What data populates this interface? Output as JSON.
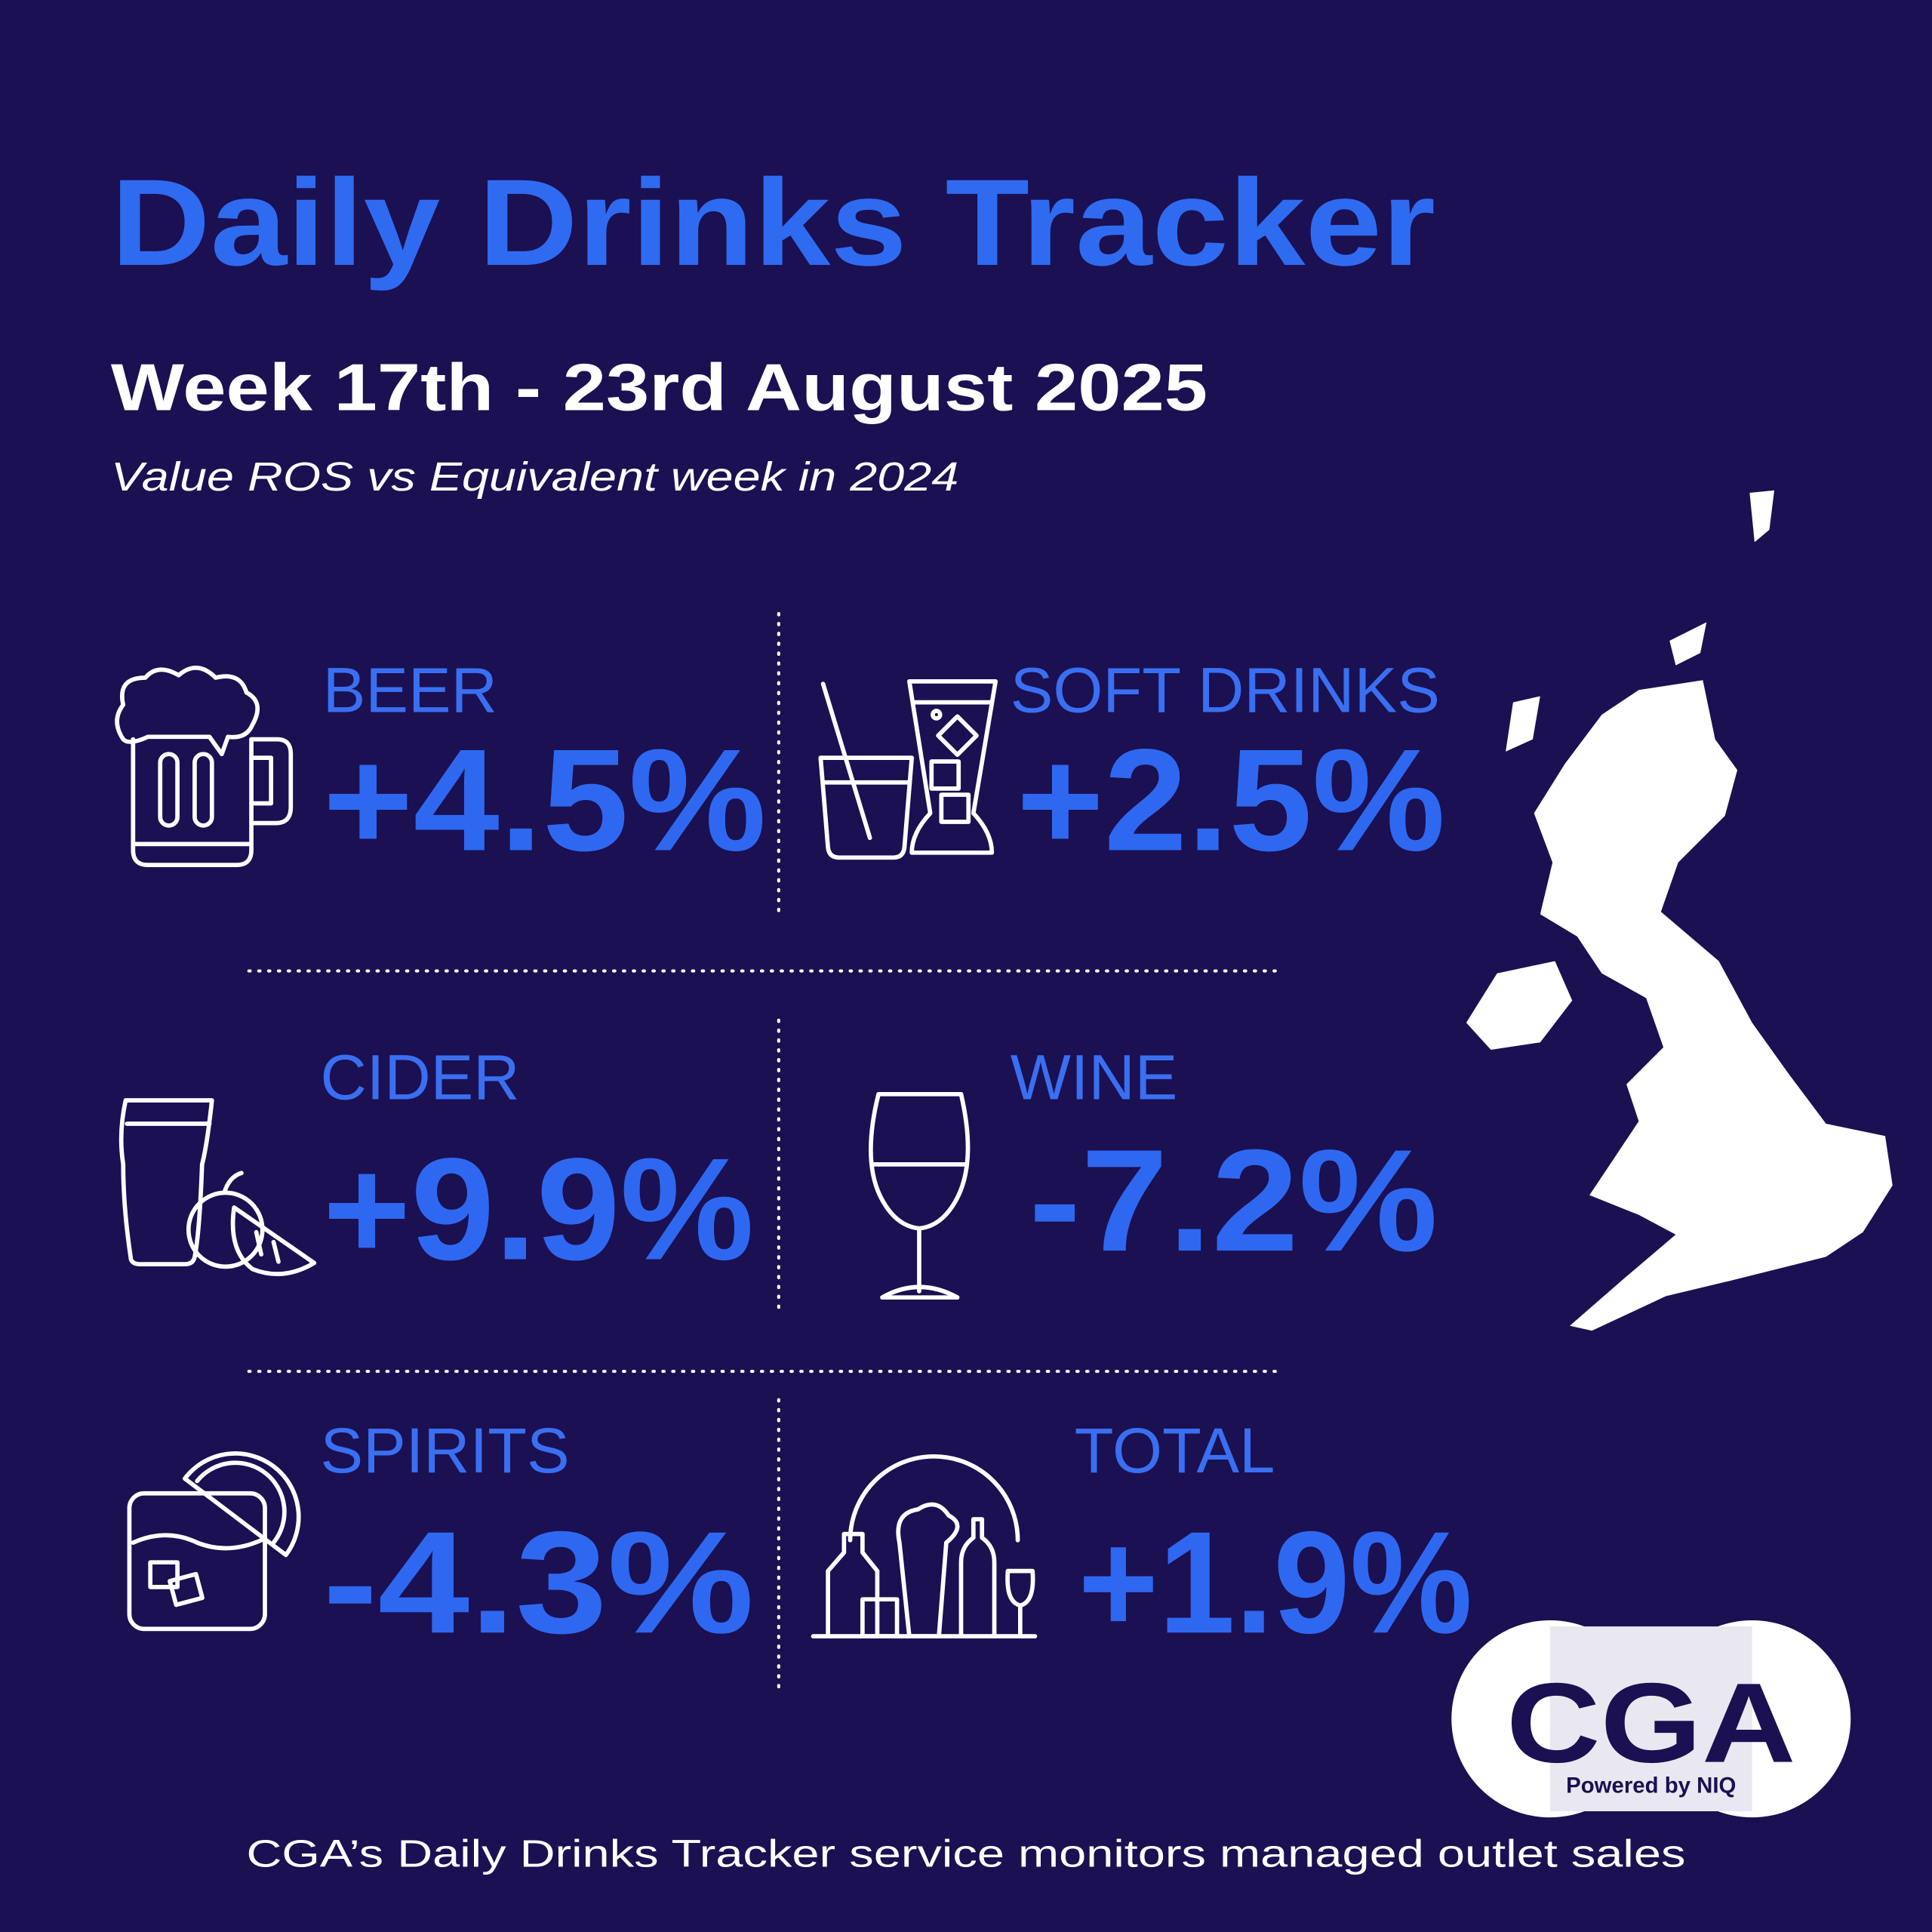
{
  "header": {
    "title": "Daily Drinks Tracker",
    "subtitle": "Week 17th - 23rd August 2025",
    "note": "Value ROS vs Equivalent week in 2024"
  },
  "tiles": [
    {
      "label": "BEER",
      "value": "+4.5%"
    },
    {
      "label": "SOFT DRINKS",
      "value": "+2.5%"
    },
    {
      "label": "CIDER",
      "value": "+9.9%"
    },
    {
      "label": "WINE",
      "value": "-7.2%"
    },
    {
      "label": "SPIRITS",
      "value": "-4.3%"
    },
    {
      "label": "TOTAL",
      "value": "+1.9%"
    }
  ],
  "logo": {
    "name": "CGA",
    "tagline": "Powered by NIQ"
  },
  "footer": "CGA’s Daily Drinks Tracker service monitors managed outlet sales"
}
